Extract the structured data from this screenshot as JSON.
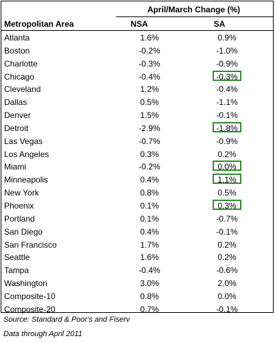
{
  "table": {
    "group_header": "April/March Change (%)",
    "col_area": "Metropolitan Area",
    "col_nsa": "NSA",
    "col_sa": "SA",
    "highlight_color": "#2e8b2e",
    "rows": [
      {
        "area": "Atlanta",
        "nsa": "1.6%",
        "sa": "0.9%",
        "highlight": false
      },
      {
        "area": "Boston",
        "nsa": "-0.2%",
        "sa": "-1.0%",
        "highlight": false
      },
      {
        "area": "Charlotte",
        "nsa": "-0.3%",
        "sa": "-0.9%",
        "highlight": false
      },
      {
        "area": "Chicago",
        "nsa": "-0.4%",
        "sa": "-0.3%",
        "highlight": true
      },
      {
        "area": "Cleveland",
        "nsa": "1.2%",
        "sa": "-0.4%",
        "highlight": false
      },
      {
        "area": "Dallas",
        "nsa": "0.5%",
        "sa": "-1.1%",
        "highlight": false
      },
      {
        "area": "Denver",
        "nsa": "1.5%",
        "sa": "-0.1%",
        "highlight": false
      },
      {
        "area": "Detroit",
        "nsa": "-2.9%",
        "sa": "-1.8%",
        "highlight": true
      },
      {
        "area": "Las Vegas",
        "nsa": "-0.7%",
        "sa": "-0.9%",
        "highlight": false
      },
      {
        "area": "Los Angeles",
        "nsa": "0.3%",
        "sa": "0.2%",
        "highlight": false
      },
      {
        "area": "Miami",
        "nsa": "-0.2%",
        "sa": "0.0%",
        "highlight": true
      },
      {
        "area": "Minneapolis",
        "nsa": "0.4%",
        "sa": "1.1%",
        "highlight": true
      },
      {
        "area": "New York",
        "nsa": "0.8%",
        "sa": "0.5%",
        "highlight": false
      },
      {
        "area": "Phoenix",
        "nsa": "0.1%",
        "sa": "0.3%",
        "highlight": true
      },
      {
        "area": "Portland",
        "nsa": "0.1%",
        "sa": "-0.7%",
        "highlight": false
      },
      {
        "area": "San Diego",
        "nsa": "0.4%",
        "sa": "-0.1%",
        "highlight": false
      },
      {
        "area": "San Francisco",
        "nsa": "1.7%",
        "sa": "0.2%",
        "highlight": false
      },
      {
        "area": "Seattle",
        "nsa": "1.6%",
        "sa": "0.2%",
        "highlight": false
      },
      {
        "area": "Tampa",
        "nsa": "-0.4%",
        "sa": "-0.6%",
        "highlight": false
      },
      {
        "area": "Washington",
        "nsa": "3.0%",
        "sa": "2.0%",
        "highlight": false
      },
      {
        "area": "Composite-10",
        "nsa": "0.8%",
        "sa": "0.0%",
        "highlight": false
      },
      {
        "area": "Composite-20",
        "nsa": "0.7%",
        "sa": "-0.1%",
        "highlight": false
      }
    ]
  },
  "footer": {
    "source": "Source: Standard & Poor's and Fiserv",
    "data_through": "Data through April 2011"
  }
}
